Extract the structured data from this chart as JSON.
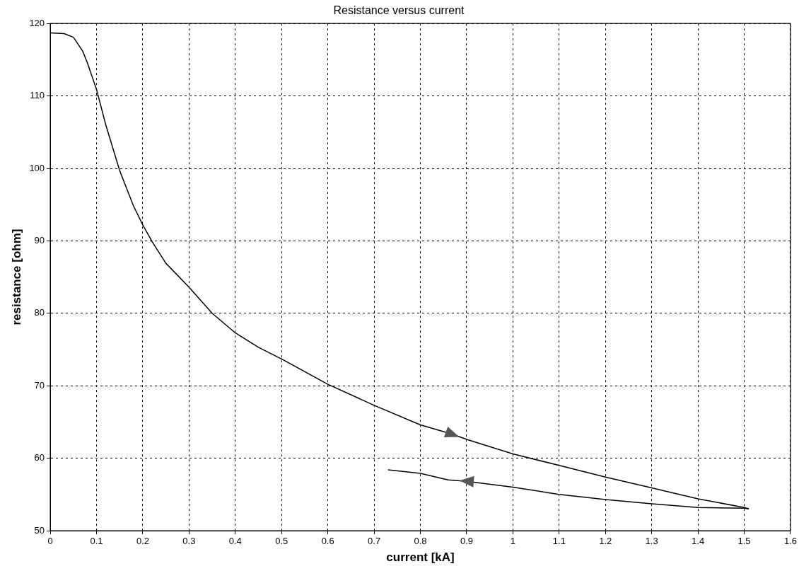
{
  "chart_data": {
    "type": "line",
    "title": "Resistance versus current",
    "xlabel": "current [kA]",
    "ylabel": "resistance [ohm]",
    "xlim": [
      0,
      1.6
    ],
    "xticks": [
      0,
      0.1,
      0.2,
      0.3,
      0.4,
      0.5,
      0.6,
      0.7,
      0.8,
      0.9,
      1,
      1.1,
      1.2,
      1.3,
      1.4,
      1.5,
      1.6
    ],
    "ylim": [
      50,
      120
    ],
    "yticks": [
      50,
      60,
      70,
      80,
      90,
      100,
      110,
      120
    ],
    "grid": true,
    "marker": "none",
    "line_style": "solid",
    "series": [
      {
        "color": "#000000",
        "x": [
          0,
          0.03,
          0.05,
          0.07,
          0.08,
          0.1,
          0.12,
          0.15,
          0.18,
          0.2,
          0.22,
          0.25,
          0.3,
          0.35,
          0.4,
          0.45,
          0.5,
          0.6,
          0.7,
          0.8,
          0.87,
          0.9,
          1.0,
          1.1,
          1.2,
          1.3,
          1.4,
          1.5,
          1.51
        ],
        "values": [
          118.7,
          118.6,
          118.1,
          116.2,
          114.6,
          110.9,
          106,
          99.7,
          94.8,
          92.2,
          89.9,
          86.9,
          83.6,
          80,
          77.3,
          75.3,
          73.7,
          70.2,
          67.3,
          64.6,
          63.3,
          62.6,
          60.6,
          59,
          57.4,
          55.9,
          54.4,
          53.2,
          53.0
        ]
      },
      {
        "color": "#000000",
        "x": [
          1.51,
          1.5,
          1.4,
          1.3,
          1.2,
          1.1,
          1.0,
          0.9,
          0.86,
          0.8,
          0.73
        ],
        "values": [
          53.0,
          53.1,
          53.2,
          53.7,
          54.3,
          55.0,
          56.0,
          56.8,
          57.0,
          57.9,
          58.4
        ]
      }
    ]
  }
}
